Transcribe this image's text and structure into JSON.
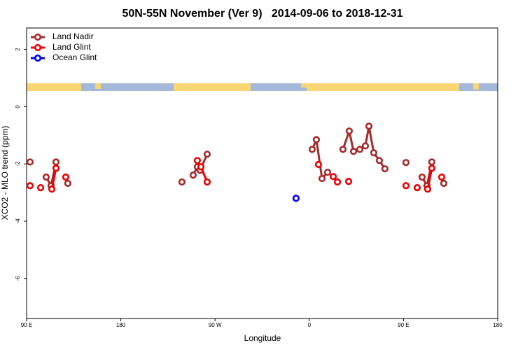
{
  "chart_data": {
    "type": "line",
    "title": "50N-55N November (Ver 9)   2014-09-06 to 2018-12-31",
    "x_label": "Longitude",
    "y_label": "XCO2 - MLO trend (ppm)",
    "xlim": [
      90,
      540
    ],
    "ylim": [
      -7.4,
      2.75
    ],
    "xticks": [
      {
        "value": 90,
        "label": "90 E"
      },
      180,
      {
        "value": 270,
        "label": "90 W"
      },
      {
        "value": 360,
        "label": "0"
      },
      {
        "value": 450,
        "label": "90 E"
      },
      {
        "value": 540,
        "label": "180"
      }
    ],
    "yticks": [
      2,
      0,
      -2,
      -4,
      -6
    ],
    "legend": "top-left",
    "series": [
      {
        "name": "Land Nadir",
        "color": "#a52a2a",
        "x": [
          93.3,
          108.7,
          113.4,
          118.1,
          129.4,
          238.4,
          249.1,
          253.1,
          255.8,
          262.5,
          362.8,
          366.8,
          372.2,
          377.5,
          392.2,
          398.2,
          402.3,
          408.3,
          413.6,
          417.0,
          421.6,
          427.0,
          432.3,
          452.4,
          467.8,
          472.5,
          477.1,
          488.5
        ],
        "values": [
          -1.93,
          -2.46,
          -2.76,
          -1.93,
          -2.68,
          -2.63,
          -2.39,
          -2.1,
          -2.22,
          -1.66,
          -1.49,
          -1.15,
          -2.51,
          -2.29,
          -1.49,
          -0.85,
          -1.56,
          -1.49,
          -1.37,
          -0.68,
          -1.61,
          -1.88,
          -2.17,
          -1.95,
          -2.46,
          -2.76,
          -1.93,
          -2.68
        ]
      },
      {
        "name": "Land Glint",
        "color": "#ee0000",
        "x": [
          93.3,
          103.4,
          114.1,
          118.1,
          127.4,
          253.1,
          256.5,
          262.5,
          368.8,
          382.9,
          386.9,
          397.6,
          452.4,
          463.1,
          473.1,
          477.1,
          486.5
        ],
        "values": [
          -2.76,
          -2.83,
          -2.88,
          -2.15,
          -2.46,
          -1.88,
          -2.1,
          -2.63,
          -2.02,
          -2.44,
          -2.63,
          -2.61,
          -2.76,
          -2.83,
          -2.88,
          -2.15,
          -2.46
        ]
      },
      {
        "name": "Ocean Glint",
        "color": "#0000ee",
        "x": [
          347.4
        ],
        "values": [
          -3.2
        ]
      }
    ]
  }
}
